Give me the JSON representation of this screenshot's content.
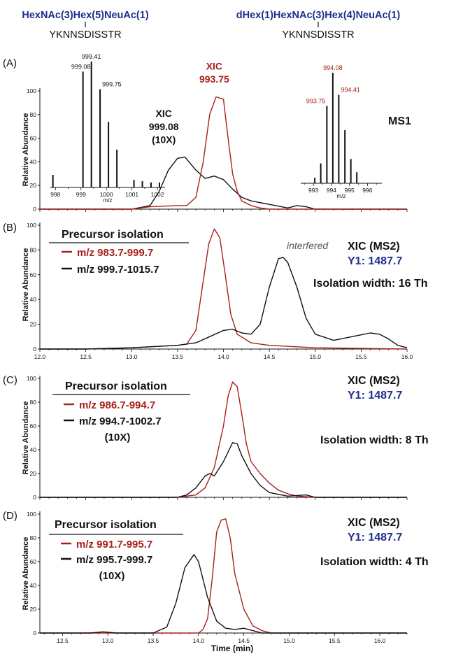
{
  "header": {
    "left_glycan": "HexNAc(3)Hex(5)NeuAc(1)",
    "left_peptide": "YKNNSDISSTR",
    "right_glycan": "dHex(1)HexNAc(3)Hex(4)NeuAc(1)",
    "right_peptide": "YKNNSDISSTR"
  },
  "colors": {
    "black": "#111111",
    "red": "#a8201a",
    "blue": "#1f2f8a"
  },
  "chart_data": [
    {
      "id": "A",
      "type": "line",
      "panel_label": "(A)",
      "ylabel": "Relative Abundance",
      "xlim": [
        12.0,
        16.0
      ],
      "ylim": [
        0,
        100
      ],
      "yticks": [
        0,
        20,
        40,
        60,
        80,
        100
      ],
      "grid": false,
      "right_title": "MS1",
      "right_title2": "",
      "right_isolation": "",
      "box_title": "",
      "xic_labels": [
        {
          "text": "XIC",
          "color": "red",
          "x": 13.9,
          "y": 118
        },
        {
          "text": "993.75",
          "color": "red",
          "x": 13.9,
          "y": 107
        },
        {
          "text": "XIC",
          "color": "black",
          "x": 13.35,
          "y": 78
        },
        {
          "text": "999.08",
          "color": "black",
          "x": 13.35,
          "y": 67
        },
        {
          "text": "(10X)",
          "color": "black",
          "x": 13.35,
          "y": 56
        }
      ],
      "series": [
        {
          "name": "",
          "color": "black",
          "x": [
            12.0,
            13.0,
            13.2,
            13.3,
            13.4,
            13.5,
            13.58,
            13.7,
            13.8,
            13.9,
            14.0,
            14.1,
            14.2,
            14.3,
            14.5,
            14.7,
            14.8,
            14.9,
            15.0,
            15.2,
            16.0
          ],
          "y": [
            0,
            0,
            3,
            15,
            33,
            43,
            44,
            33,
            26,
            28,
            25,
            17,
            10,
            7,
            4,
            1,
            3,
            2,
            0,
            0,
            0
          ]
        },
        {
          "name": "",
          "color": "red",
          "x": [
            12.0,
            13.0,
            13.2,
            13.5,
            13.6,
            13.7,
            13.78,
            13.85,
            13.92,
            14.0,
            14.05,
            14.1,
            14.15,
            14.2,
            14.3,
            14.4,
            14.5,
            14.7,
            16.0
          ],
          "y": [
            0,
            0,
            2,
            3,
            3,
            10,
            40,
            80,
            95,
            93,
            60,
            30,
            15,
            7,
            3,
            1,
            0,
            0,
            0
          ]
        }
      ],
      "insets": [
        {
          "xlabel": "m/z",
          "ticks": [
            998,
            999,
            1000,
            1001,
            1002
          ],
          "xlim": [
            997.8,
            1002.3
          ],
          "peaks": [
            [
              997.9,
              10
            ],
            [
              999.08,
              92
            ],
            [
              999.41,
              100
            ],
            [
              999.75,
              78
            ],
            [
              1000.08,
              52
            ],
            [
              1000.41,
              30
            ],
            [
              1001.08,
              6
            ],
            [
              1001.41,
              5
            ],
            [
              1001.75,
              4
            ],
            [
              1002.08,
              4
            ]
          ],
          "labels": [
            {
              "text": "999.08",
              "x": 999.08,
              "y": 92,
              "color": "black"
            },
            {
              "text": "999.41",
              "x": 999.41,
              "y": 100,
              "color": "black"
            },
            {
              "text": "999.75",
              "x": 999.75,
              "y": 78,
              "color": "black"
            }
          ]
        },
        {
          "xlabel": "m/z",
          "ticks": [
            993,
            994,
            995,
            996
          ],
          "xlim": [
            992.3,
            996.8
          ],
          "peaks": [
            [
              993.08,
              5
            ],
            [
              993.41,
              18
            ],
            [
              993.75,
              70
            ],
            [
              994.08,
              100
            ],
            [
              994.41,
              80
            ],
            [
              994.75,
              48
            ],
            [
              995.08,
              22
            ],
            [
              995.41,
              10
            ]
          ],
          "labels": [
            {
              "text": "993.75",
              "x": 993.75,
              "y": 70,
              "color": "red"
            },
            {
              "text": "994.08",
              "x": 994.08,
              "y": 100,
              "color": "red"
            },
            {
              "text": "994.41",
              "x": 994.41,
              "y": 80,
              "color": "red"
            }
          ]
        }
      ]
    },
    {
      "id": "B",
      "type": "line",
      "panel_label": "(B)",
      "ylabel": "Relative Abundance",
      "xlim": [
        12.0,
        16.0
      ],
      "ylim": [
        0,
        100
      ],
      "yticks": [
        0,
        20,
        40,
        60,
        80,
        100
      ],
      "xticks": [
        12.0,
        12.5,
        13.0,
        13.5,
        14.0,
        14.5,
        15.0,
        15.5,
        16.0
      ],
      "xticklabels": [
        "12.0",
        "12.5",
        "13.0",
        "13.5",
        "14.0",
        "14.5",
        "15.0",
        "15.5",
        "16.0"
      ],
      "grid": false,
      "right_title": "XIC (MS2)",
      "right_title2": "Y1: 1487.7",
      "right_isolation": "Isolation width: 16 Th",
      "box_title": "Precursor isolation",
      "legend": [
        {
          "text": "m/z 983.7-999.7",
          "color": "red"
        },
        {
          "text": "m/z 999.7-1015.7",
          "color": "black"
        }
      ],
      "legend_extra": "",
      "annotation": "interfered",
      "series": [
        {
          "name": "m/z 983.7-999.7",
          "color": "red",
          "x": [
            12.0,
            12.5,
            13.0,
            13.5,
            13.6,
            13.7,
            13.78,
            13.84,
            13.9,
            13.96,
            14.02,
            14.08,
            14.15,
            14.3,
            14.5,
            15.0,
            16.0
          ],
          "y": [
            0,
            0,
            1,
            3,
            4,
            15,
            55,
            85,
            97,
            90,
            60,
            28,
            12,
            5,
            3,
            1,
            0
          ]
        },
        {
          "name": "m/z 999.7-1015.7",
          "color": "black",
          "x": [
            12.0,
            12.5,
            13.0,
            13.5,
            13.7,
            13.85,
            14.0,
            14.1,
            14.2,
            14.3,
            14.4,
            14.5,
            14.6,
            14.65,
            14.7,
            14.8,
            14.9,
            15.0,
            15.2,
            15.4,
            15.6,
            15.7,
            15.8,
            15.9,
            16.0
          ],
          "y": [
            0,
            0,
            1,
            3,
            5,
            10,
            15,
            16,
            13,
            12,
            20,
            50,
            73,
            74,
            70,
            50,
            25,
            12,
            7,
            10,
            13,
            12,
            8,
            3,
            1
          ]
        }
      ]
    },
    {
      "id": "C",
      "type": "line",
      "panel_label": "(C)",
      "ylabel": "Relative Abundance",
      "xlim": [
        12.0,
        16.0
      ],
      "ylim": [
        0,
        100
      ],
      "yticks": [
        0,
        20,
        40,
        60,
        80,
        100
      ],
      "grid": false,
      "right_title": "XIC (MS2)",
      "right_title2": "Y1: 1487.7",
      "right_isolation": "Isolation width: 8 Th",
      "box_title": "Precursor isolation",
      "legend": [
        {
          "text": "m/z 986.7-994.7",
          "color": "red"
        },
        {
          "text": "m/z 994.7-1002.7",
          "color": "black"
        }
      ],
      "legend_extra": "(10X)",
      "annotation": "",
      "series": [
        {
          "name": "m/z 986.7-994.7",
          "color": "red",
          "x": [
            12.0,
            13.0,
            13.5,
            13.7,
            13.8,
            13.9,
            14.0,
            14.05,
            14.1,
            14.15,
            14.2,
            14.25,
            14.3,
            14.4,
            14.5,
            14.6,
            14.7,
            14.8,
            15.0,
            16.0
          ],
          "y": [
            0,
            0,
            0,
            2,
            8,
            25,
            60,
            85,
            97,
            93,
            70,
            45,
            30,
            20,
            12,
            6,
            3,
            1,
            0,
            0
          ]
        },
        {
          "name": "m/z 994.7-1002.7",
          "color": "black",
          "x": [
            12.0,
            13.0,
            13.5,
            13.6,
            13.7,
            13.8,
            13.85,
            13.9,
            14.0,
            14.1,
            14.15,
            14.2,
            14.3,
            14.4,
            14.5,
            14.7,
            14.9,
            15.0,
            16.0
          ],
          "y": [
            0,
            0,
            0,
            2,
            8,
            18,
            20,
            18,
            30,
            46,
            45,
            35,
            20,
            10,
            4,
            1,
            2,
            0,
            0
          ]
        }
      ]
    },
    {
      "id": "D",
      "type": "line",
      "panel_label": "(D)",
      "ylabel": "Relative Abundance",
      "xlabel": "Time (min)",
      "xlim": [
        12.25,
        16.3
      ],
      "ylim": [
        0,
        100
      ],
      "yticks": [
        0,
        20,
        40,
        60,
        80,
        100
      ],
      "xticks": [
        12.5,
        13.0,
        13.5,
        14.0,
        14.5,
        15.0,
        15.5,
        16.0
      ],
      "xticklabels": [
        "12.5",
        "13.0",
        "13.5",
        "14.0",
        "14.5",
        "15.0",
        "15.5",
        "16.0"
      ],
      "grid": false,
      "right_title": "XIC (MS2)",
      "right_title2": "Y1: 1487.7",
      "right_isolation": "Isolation width: 4 Th",
      "box_title": "Precursor isolation",
      "legend": [
        {
          "text": "m/z 991.7-995.7",
          "color": "red"
        },
        {
          "text": "m/z 995.7-999.7",
          "color": "black"
        }
      ],
      "legend_extra": "(10X)",
      "annotation": "",
      "series": [
        {
          "name": "m/z 991.7-995.7",
          "color": "red",
          "x": [
            12.25,
            13.5,
            14.0,
            14.05,
            14.1,
            14.15,
            14.2,
            14.25,
            14.3,
            14.35,
            14.4,
            14.5,
            14.6,
            14.7,
            14.8,
            16.3
          ],
          "y": [
            0,
            0,
            0,
            3,
            12,
            45,
            85,
            95,
            96,
            80,
            50,
            20,
            6,
            2,
            0,
            0
          ]
        },
        {
          "name": "m/z 995.7-999.7",
          "color": "black",
          "x": [
            12.25,
            12.8,
            12.95,
            13.1,
            13.5,
            13.65,
            13.75,
            13.85,
            13.95,
            14.0,
            14.1,
            14.2,
            14.3,
            14.4,
            14.5,
            14.55,
            14.6,
            14.7,
            15.0,
            16.3
          ],
          "y": [
            0,
            0,
            1,
            0,
            0,
            5,
            25,
            55,
            66,
            60,
            30,
            10,
            4,
            3,
            4,
            3,
            2,
            0,
            0,
            0
          ]
        }
      ]
    }
  ]
}
